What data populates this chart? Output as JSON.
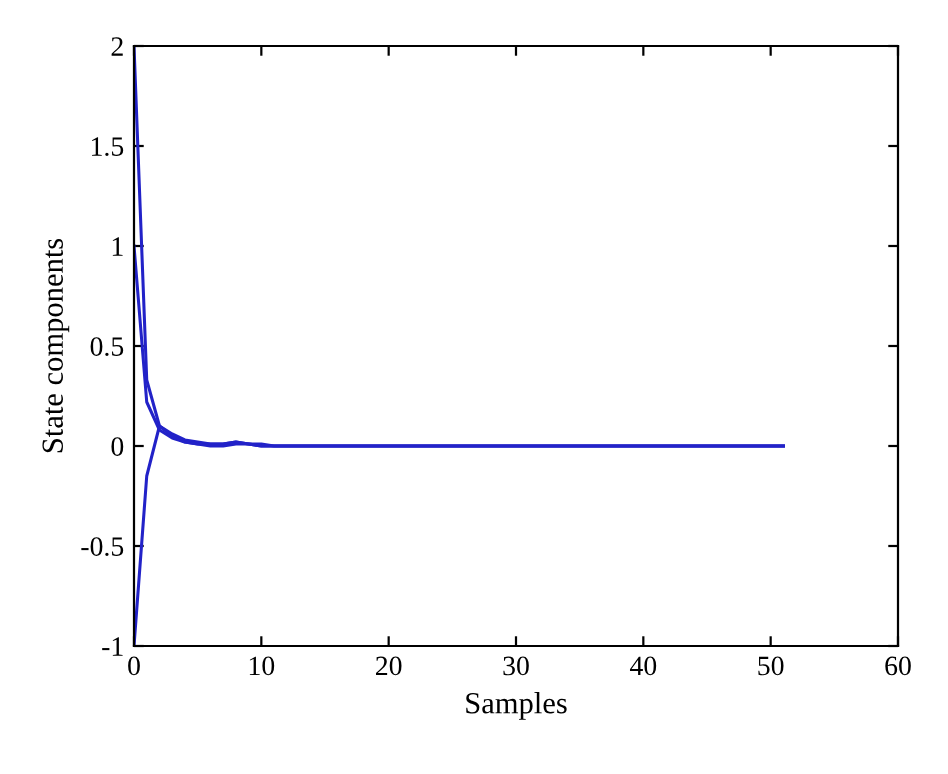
{
  "chart_data": {
    "type": "line",
    "xlabel": "Samples",
    "ylabel": "State components",
    "x": [
      0,
      1,
      2,
      3,
      4,
      5,
      6,
      7,
      8,
      9,
      10,
      11,
      12,
      13,
      14,
      15,
      16,
      17,
      18,
      19,
      20,
      21,
      22,
      23,
      24,
      25,
      26,
      27,
      28,
      29,
      30,
      31,
      32,
      33,
      34,
      35,
      36,
      37,
      38,
      39,
      40,
      41,
      42,
      43,
      44,
      45,
      46,
      47,
      48,
      49,
      50,
      51
    ],
    "series": [
      {
        "color": "#2222c8",
        "values": [
          2,
          0.33,
          0.1,
          0.06,
          0.03,
          0.02,
          0.01,
          0.01,
          0.02,
          0.01,
          0.01,
          0,
          0,
          0,
          0,
          0,
          0,
          0,
          0,
          0,
          0,
          0,
          0,
          0,
          0,
          0,
          0,
          0,
          0,
          0,
          0,
          0,
          0,
          0,
          0,
          0,
          0,
          0,
          0,
          0,
          0,
          0,
          0,
          0,
          0,
          0,
          0,
          0,
          0,
          0,
          0,
          0
        ]
      },
      {
        "color": "#2222c8",
        "values": [
          1,
          0.22,
          0.08,
          0.04,
          0.02,
          0.01,
          0.01,
          0.01,
          0.02,
          0.01,
          0,
          0,
          0,
          0,
          0,
          0,
          0,
          0,
          0,
          0,
          0,
          0,
          0,
          0,
          0,
          0,
          0,
          0,
          0,
          0,
          0,
          0,
          0,
          0,
          0,
          0,
          0,
          0,
          0,
          0,
          0,
          0,
          0,
          0,
          0,
          0,
          0,
          0,
          0,
          0,
          0,
          0
        ]
      },
      {
        "color": "#2222c8",
        "values": [
          -1,
          -0.15,
          0.1,
          0.05,
          0.02,
          0.01,
          0,
          0,
          0.01,
          0.01,
          0,
          0,
          0,
          0,
          0,
          0,
          0,
          0,
          0,
          0,
          0,
          0,
          0,
          0,
          0,
          0,
          0,
          0,
          0,
          0,
          0,
          0,
          0,
          0,
          0,
          0,
          0,
          0,
          0,
          0,
          0,
          0,
          0,
          0,
          0,
          0,
          0,
          0,
          0,
          0,
          0,
          0
        ]
      }
    ],
    "xlim": [
      0,
      60
    ],
    "xticks": [
      0,
      10,
      20,
      30,
      40,
      50,
      60
    ],
    "ylim": [
      -1,
      2
    ],
    "yticks": [
      {
        "value": -1,
        "label": "-1"
      },
      {
        "value": -0.5,
        "label": "-0.5"
      },
      0,
      0.5,
      1,
      1.5,
      2
    ],
    "grid": false,
    "marker": "none",
    "line_style": "solid"
  }
}
